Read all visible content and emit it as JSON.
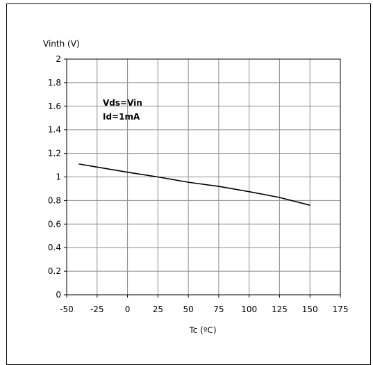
{
  "chart_data": {
    "type": "line",
    "ylabel": "Vinth (V)",
    "xlabel": "Tc (ºC)",
    "xlim": [
      -50,
      175
    ],
    "ylim": [
      0,
      2
    ],
    "x_ticks": [
      -50,
      -25,
      0,
      25,
      50,
      75,
      100,
      125,
      150,
      175
    ],
    "x_tick_labels": [
      "-50",
      "-25",
      "0",
      "25",
      "50",
      "75",
      "100",
      "125",
      "150",
      "175"
    ],
    "y_ticks": [
      0,
      0.2,
      0.4,
      0.6,
      0.8,
      1,
      1.2,
      1.4,
      1.6,
      1.8,
      2
    ],
    "y_tick_labels": [
      "0",
      "0.2",
      "0.4",
      "0.6",
      "0.8",
      "1",
      "1.2",
      "1.4",
      "1.6",
      "1.8",
      "2"
    ],
    "grid": true,
    "annotations": [
      "Vds=Vin",
      "Id=1mA"
    ],
    "series": [
      {
        "color": "#000000",
        "x": [
          -40,
          0,
          25,
          50,
          75,
          100,
          125,
          150
        ],
        "y": [
          1.11,
          1.04,
          1.0,
          0.955,
          0.92,
          0.875,
          0.826,
          0.76
        ]
      }
    ]
  }
}
